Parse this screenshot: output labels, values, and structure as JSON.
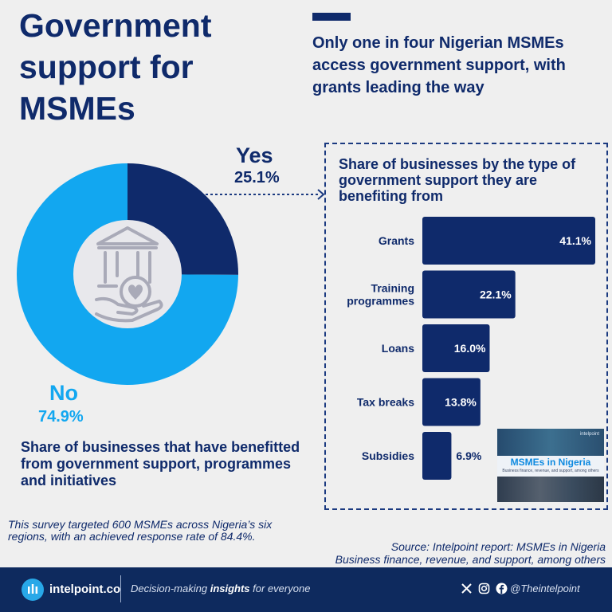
{
  "header": {
    "title": "Government support for MSMEs",
    "subtitle": "Only one in four Nigerian MSMEs access government support, with grants leading the way"
  },
  "donut": {
    "caption": "Share of businesses that have benefitted from government support, programmes and initiatives",
    "icon": "government-building-hand-heart-icon"
  },
  "bars_panel": {
    "title": "Share of businesses by the type of government support they are benefiting from"
  },
  "chart_data": [
    {
      "type": "pie",
      "variant": "donut",
      "title": "Share of businesses that have benefitted from government support, programmes and initiatives",
      "categories": [
        "Yes",
        "No"
      ],
      "values": [
        25.1,
        74.9
      ],
      "value_labels": [
        "25.1%",
        "74.9%"
      ],
      "colors": [
        "#0f2a6b",
        "#12a7f0"
      ],
      "unit": "%"
    },
    {
      "type": "bar",
      "orientation": "horizontal",
      "title": "Share of businesses by the type of government support they are benefiting from",
      "categories": [
        "Grants",
        "Training programmes",
        "Loans",
        "Tax breaks",
        "Subsidies"
      ],
      "category_lines": [
        [
          "Grants"
        ],
        [
          "Training",
          "programmes"
        ],
        [
          "Loans"
        ],
        [
          "Tax breaks"
        ],
        [
          "Subsidies"
        ]
      ],
      "values": [
        41.1,
        22.1,
        16.0,
        13.8,
        6.9
      ],
      "value_labels": [
        "41.1%",
        "22.1%",
        "16.0%",
        "13.8%",
        "6.9%"
      ],
      "xlim": [
        0,
        41.1
      ],
      "bar_color": "#0f2a6b",
      "unit": "%"
    }
  ],
  "report_thumbnail": {
    "brand": "intelpoint",
    "title": "MSMEs in Nigeria",
    "subtitle": "Business finance, revenue, and support, among others"
  },
  "notes": {
    "survey": "This survey targeted 600 MSMEs across Nigeria’s six regions, with an achieved response rate of 84.4%.",
    "source_line1": "Source: Intelpoint report: MSMEs in Nigeria",
    "source_line2": "Business finance, revenue, and support, among others"
  },
  "footer": {
    "brand": "intelpoint.co",
    "tagline_pre": "Decision-making ",
    "tagline_bold": "insights",
    "tagline_post": " for everyone",
    "social_icons": [
      "x-icon",
      "instagram-icon",
      "facebook-icon"
    ],
    "handle": "@Theintelpoint"
  },
  "colors": {
    "navy": "#0f2a6b",
    "light_blue": "#12a7f0",
    "background": "#efefef",
    "footer": "#0e2a5e"
  }
}
